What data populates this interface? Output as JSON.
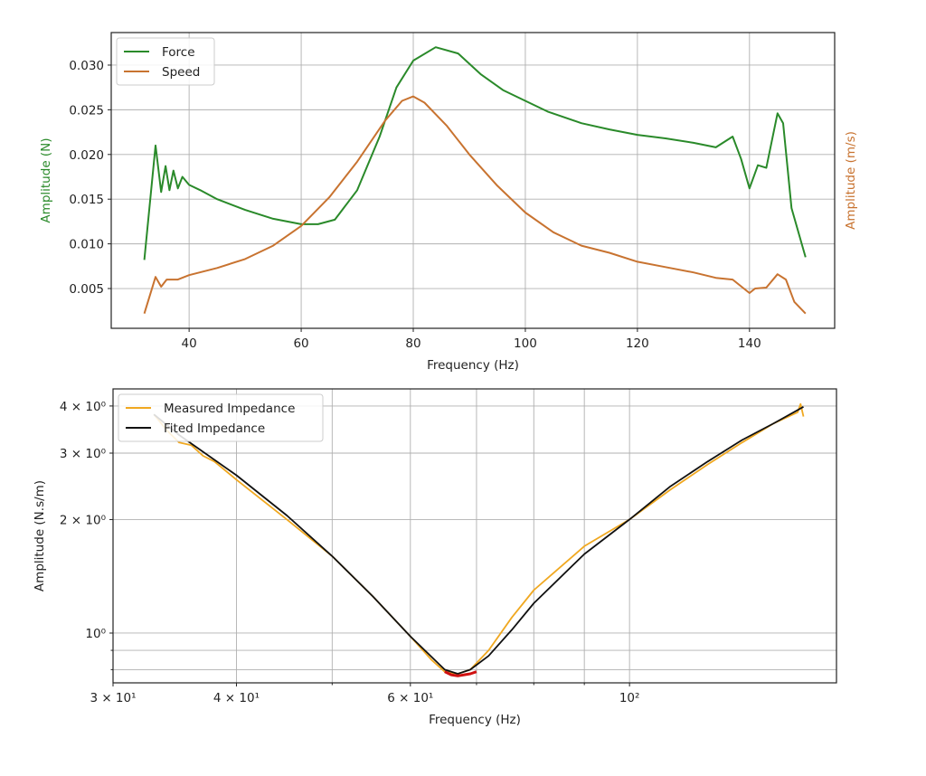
{
  "chart_data": [
    {
      "type": "line",
      "xlabel": "Frequency (Hz)",
      "ylabel": "Amplitude (N)",
      "ylabel_right": "Amplitude (m/s)",
      "xlim": [
        26.1,
        155.2
      ],
      "ylim": [
        0.00055,
        0.03364
      ],
      "xticks": [
        40,
        60,
        80,
        100,
        120,
        140
      ],
      "yticks": [
        0.005,
        0.01,
        0.015,
        0.02,
        0.025,
        0.03
      ],
      "ytick_labels": [
        "0.005",
        "0.010",
        "0.015",
        "0.020",
        "0.025",
        "0.030"
      ],
      "grid": true,
      "legend_position": "top-left",
      "series": [
        {
          "name": "Force",
          "color": "#2a8a2a",
          "x": [
            32,
            34,
            35,
            35.8,
            36.5,
            37.2,
            38,
            38.8,
            40,
            42,
            45,
            50,
            55,
            60,
            63,
            66,
            70,
            74,
            77,
            80,
            84,
            88,
            92,
            96,
            100,
            104,
            110,
            115,
            120,
            125,
            130,
            134,
            137,
            138.5,
            140,
            141.5,
            143,
            145,
            146,
            147.5,
            150
          ],
          "y": [
            0.0082,
            0.021,
            0.0158,
            0.0187,
            0.016,
            0.0182,
            0.0162,
            0.0175,
            0.0166,
            0.016,
            0.015,
            0.0138,
            0.0128,
            0.0122,
            0.0122,
            0.0127,
            0.016,
            0.022,
            0.0275,
            0.0305,
            0.032,
            0.0313,
            0.029,
            0.0272,
            0.026,
            0.0248,
            0.0235,
            0.0228,
            0.0222,
            0.0218,
            0.0213,
            0.0208,
            0.022,
            0.0195,
            0.0162,
            0.0188,
            0.0185,
            0.0246,
            0.0235,
            0.014,
            0.0085
          ]
        },
        {
          "name": "Speed",
          "color": "#c87330",
          "x": [
            32,
            34,
            35,
            36,
            38,
            40,
            45,
            50,
            55,
            60,
            65,
            70,
            75,
            78,
            80,
            82,
            86,
            90,
            95,
            100,
            105,
            110,
            115,
            120,
            125,
            130,
            134,
            137,
            140,
            141,
            143,
            145,
            146.5,
            148,
            150
          ],
          "y": [
            0.0022,
            0.0063,
            0.0052,
            0.006,
            0.006,
            0.0065,
            0.0073,
            0.0083,
            0.0098,
            0.012,
            0.0152,
            0.0192,
            0.0238,
            0.026,
            0.0265,
            0.0258,
            0.0232,
            0.02,
            0.0165,
            0.0135,
            0.0113,
            0.0098,
            0.009,
            0.008,
            0.0074,
            0.0068,
            0.0062,
            0.006,
            0.0045,
            0.005,
            0.0051,
            0.0066,
            0.006,
            0.0035,
            0.0022
          ]
        }
      ]
    },
    {
      "type": "line",
      "xscale": "log",
      "yscale": "log",
      "xlabel": "Frequency (Hz)",
      "ylabel": "Amplitude (N.s/m)",
      "xlim": [
        30,
        162
      ],
      "ylim": [
        0.738,
        4.44
      ],
      "xticks": [
        30,
        40,
        60,
        100
      ],
      "xtick_labels": [
        "3 × 10¹",
        "4 × 10¹",
        "6 × 10¹",
        "10²"
      ],
      "xminor": [
        50,
        70,
        80,
        90
      ],
      "yticks": [
        1,
        2,
        3,
        4
      ],
      "ytick_labels": [
        "10⁰",
        "2 × 10⁰",
        "3 × 10⁰",
        "4 × 10⁰"
      ],
      "yminor_unlabeled": [
        0.8,
        0.9
      ],
      "grid": true,
      "legend_position": "top-left",
      "series": [
        {
          "name": "Measured Impedance",
          "color": "#f0a820",
          "x": [
            33,
            34,
            35,
            36,
            37,
            38,
            40,
            45,
            50,
            55,
            60,
            63,
            65,
            67,
            69,
            72,
            76,
            80,
            90,
            100,
            110,
            120,
            130,
            140,
            148,
            149,
            150
          ],
          "y": [
            3.8,
            3.45,
            3.2,
            3.15,
            2.95,
            2.85,
            2.55,
            2.0,
            1.6,
            1.25,
            0.98,
            0.85,
            0.79,
            0.78,
            0.8,
            0.9,
            1.1,
            1.3,
            1.7,
            2.0,
            2.4,
            2.8,
            3.2,
            3.6,
            3.85,
            4.05,
            3.75
          ]
        },
        {
          "name": "Fited Impedance",
          "color": "#111111",
          "x": [
            33,
            35,
            40,
            45,
            50,
            55,
            60,
            65,
            67,
            69,
            72,
            76,
            80,
            90,
            100,
            110,
            120,
            130,
            140,
            150
          ],
          "y": [
            3.8,
            3.35,
            2.62,
            2.05,
            1.6,
            1.25,
            0.98,
            0.8,
            0.78,
            0.8,
            0.87,
            1.02,
            1.2,
            1.62,
            2.0,
            2.45,
            2.85,
            3.25,
            3.6,
            3.98
          ]
        },
        {
          "name": "minimum region",
          "color": "#d01010",
          "legend": false,
          "x": [
            65,
            66,
            67,
            68,
            69,
            70
          ],
          "y": [
            0.79,
            0.775,
            0.77,
            0.775,
            0.78,
            0.79
          ]
        }
      ]
    }
  ]
}
